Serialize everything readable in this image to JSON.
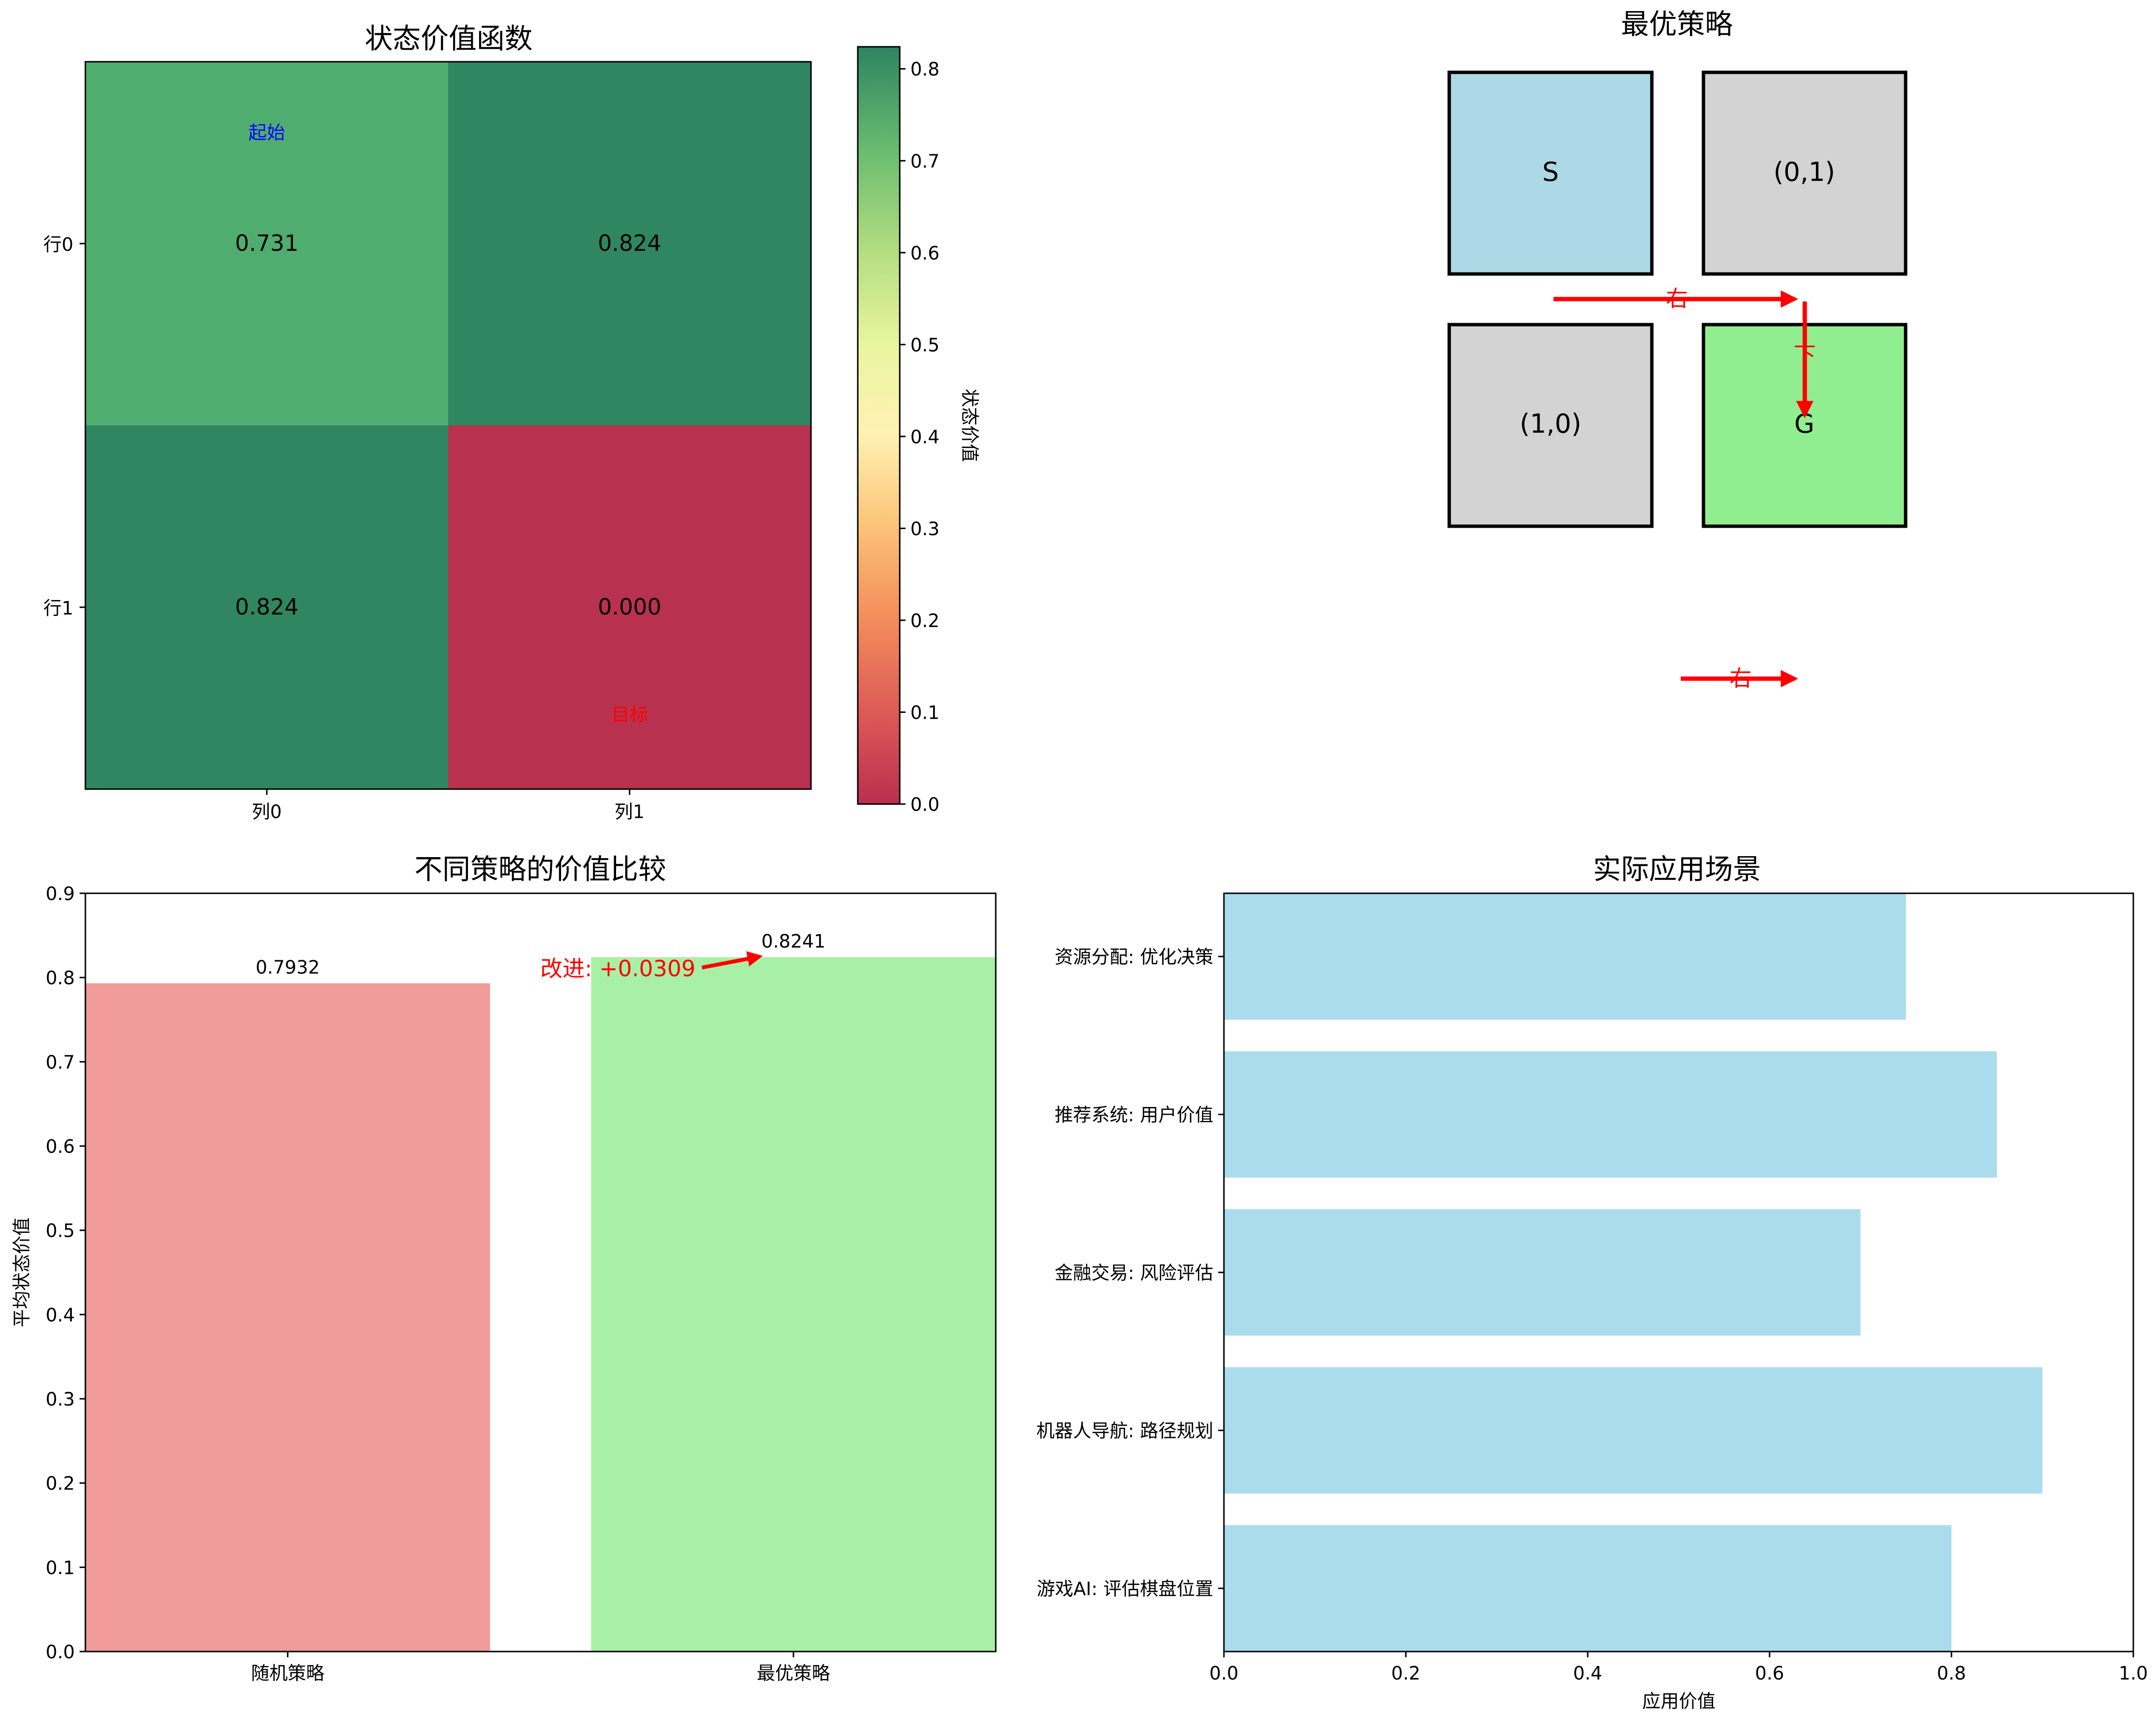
{
  "chart_data": [
    {
      "type": "heatmap",
      "title": "状态价值函数",
      "row_labels": [
        "行0",
        "行1"
      ],
      "col_labels": [
        "列0",
        "列1"
      ],
      "values": [
        [
          0.731,
          0.824
        ],
        [
          0.824,
          0.0
        ]
      ],
      "value_labels": [
        [
          "0.731",
          "0.824"
        ],
        [
          "0.824",
          "0.000"
        ]
      ],
      "annotations": {
        "start": "起始",
        "goal": "目标"
      },
      "colormap": "RdYlGn",
      "colors": {
        "start_label": "#0000ff",
        "goal_label": "#ff0000"
      },
      "colorbar": {
        "label": "状态价值",
        "range": [
          0.0,
          0.824
        ],
        "ticks": [
          "0.0",
          "0.1",
          "0.2",
          "0.3",
          "0.4",
          "0.5",
          "0.6",
          "0.7",
          "0.8"
        ]
      }
    },
    {
      "type": "diagram",
      "title": "最优策略",
      "cells": [
        {
          "label": "S",
          "row": 0,
          "col": 0,
          "color": "#add8e6"
        },
        {
          "label": "(0,1)",
          "row": 0,
          "col": 1,
          "color": "#d3d3d3"
        },
        {
          "label": "(1,0)",
          "row": 1,
          "col": 0,
          "color": "#d3d3d3"
        },
        {
          "label": "G",
          "row": 1,
          "col": 1,
          "color": "#90ee90"
        }
      ],
      "arrows": [
        {
          "from": "S",
          "to": "(0,1)",
          "label": "右"
        },
        {
          "from": "(0,1)",
          "to": "G",
          "label": "下"
        },
        {
          "label": "右"
        }
      ],
      "colors": {
        "arrow": "#ff0000"
      }
    },
    {
      "type": "bar",
      "title": "不同策略的价值比较",
      "categories": [
        "随机策略",
        "最优策略"
      ],
      "values": [
        0.7932,
        0.8241
      ],
      "value_labels": [
        "0.7932",
        "0.8241"
      ],
      "colors": [
        "#f19a9a",
        "#a7f0a6"
      ],
      "ylabel": "平均状态价值",
      "ylim": [
        0,
        0.9
      ],
      "yticks": [
        "0.0",
        "0.1",
        "0.2",
        "0.3",
        "0.4",
        "0.5",
        "0.6",
        "0.7",
        "0.8",
        "0.9"
      ],
      "annotation": {
        "text": "改进: +0.0309",
        "color": "#ff0000"
      }
    },
    {
      "type": "bar",
      "orientation": "horizontal",
      "title": "实际应用场景",
      "categories": [
        "游戏AI: 评估棋盘位置",
        "机器人导航: 路径规划",
        "金融交易: 风险评估",
        "推荐系统: 用户价值",
        "资源分配: 优化决策"
      ],
      "values": [
        0.8,
        0.9,
        0.7,
        0.85,
        0.75
      ],
      "color": "#aadcee",
      "xlabel": "应用价值",
      "xlim": [
        0,
        1.0
      ],
      "xticks": [
        "0.0",
        "0.2",
        "0.4",
        "0.6",
        "0.8",
        "1.0"
      ]
    }
  ]
}
